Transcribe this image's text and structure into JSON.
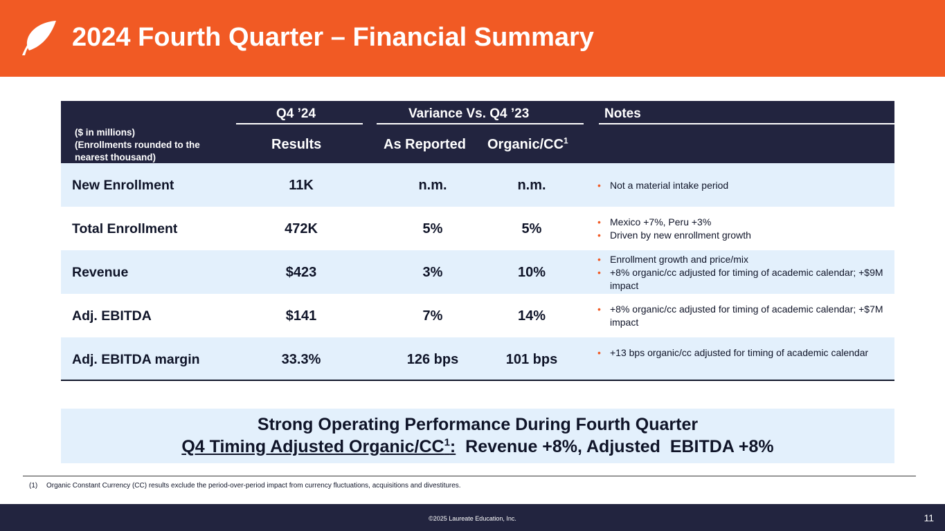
{
  "header": {
    "title": "2024 Fourth Quarter – Financial Summary",
    "accent_color": "#f15a24",
    "logo_icon": "laureate-leaf-logo"
  },
  "table": {
    "units_line1": "($ in millions)",
    "units_line2": "(Enrollments  rounded  to the",
    "units_line3": "nearest thousand)",
    "group_q4": "Q4 ’24",
    "group_variance": "Variance Vs. Q4 ’23",
    "group_notes": "Notes",
    "col_results": "Results",
    "col_as_reported": "As Reported",
    "col_organic": "Organic/CC",
    "col_organic_sup": "1",
    "header_color": "#22243f",
    "shade_color": "#e3f0fc",
    "rows": [
      {
        "metric": "New Enrollment",
        "results": "11K",
        "as_reported": "n.m.",
        "organic": "n.m.",
        "notes": [
          "Not a material intake period"
        ]
      },
      {
        "metric": "Total Enrollment",
        "results": "472K",
        "as_reported": "5%",
        "organic": "5%",
        "notes": [
          "Mexico +7%, Peru +3%",
          "Driven by new enrollment  growth"
        ]
      },
      {
        "metric": "Revenue",
        "results": "$423",
        "as_reported": "3%",
        "organic": "10%",
        "notes": [
          "Enrollment  growth and price/mix",
          "+8% organic/cc adjusted  for timing of academic calendar; +$9M impact"
        ]
      },
      {
        "metric": "Adj. EBITDA",
        "results": "$141",
        "as_reported": "7%",
        "organic": "14%",
        "notes": [
          "+8% organic/cc adjusted  for timing of academic calendar; +$7M impact"
        ]
      },
      {
        "metric": "Adj. EBITDA margin",
        "results": "33.3%",
        "as_reported": "126 bps",
        "organic": "101 bps",
        "notes": [
          "+13 bps organic/cc adjusted  for timing of academic calendar"
        ]
      }
    ]
  },
  "summary": {
    "line1": "Strong Operating Performance During Fourth Quarter",
    "line2_underlined": "Q4 Timing Adjusted  Organic/CC",
    "line2_sup": "1",
    "line2_colon": ":",
    "line2_rest": "  Revenue +8%, Adjusted  EBITDA +8%"
  },
  "footnote": {
    "number": "(1)",
    "text": "Organic  Constant  Currency  (CC) results  exclude  the  period-over-period  impact from currency  fluctuations,  acquisitions and  divestitures."
  },
  "footer": {
    "copyright": "©2025 Laureate Education, Inc.",
    "page_number": "11"
  }
}
